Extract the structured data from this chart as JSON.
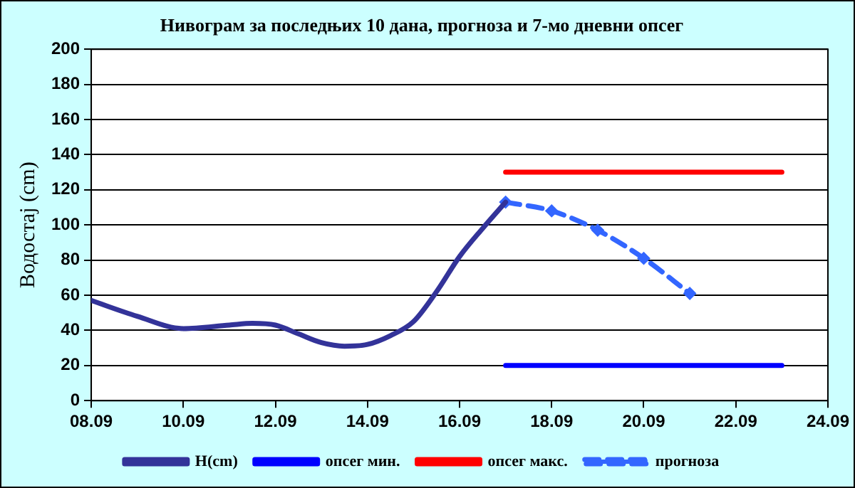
{
  "chart_data": {
    "type": "line",
    "title": "Нивограм за последњих 10 дана, прогноза и 7-мо дневни опсег",
    "ylabel": "Водостај (cm)",
    "xlim": [
      "--09-08",
      "--09-24"
    ],
    "xticks": [
      {
        "value": "--09-08",
        "label": "08.09"
      },
      {
        "value": "--09-10",
        "label": "10.09"
      },
      {
        "value": "--09-12",
        "label": "12.09"
      },
      {
        "value": "--09-14",
        "label": "14.09"
      },
      {
        "value": "--09-16",
        "label": "16.09"
      },
      {
        "value": "--09-18",
        "label": "18.09"
      },
      {
        "value": "--09-20",
        "label": "20.09"
      },
      {
        "value": "--09-22",
        "label": "22.09"
      },
      {
        "value": "--09-24",
        "label": "24.09"
      }
    ],
    "ylim": [
      0,
      200
    ],
    "yticks": [
      0,
      20,
      40,
      60,
      80,
      100,
      120,
      140,
      160,
      180,
      200
    ],
    "grid": "y",
    "legend": "bottom",
    "series": [
      {
        "name": "H(cm)",
        "color": "#333399",
        "marker": "none",
        "line_style": "solid",
        "x": [
          "--09-08T00:00",
          "--09-09T00:00",
          "--09-10T00:00",
          "--09-11T00:00",
          "--09-11T12:00",
          "--09-12T00:00",
          "--09-12T12:00",
          "--09-13T00:00",
          "--09-13T12:00",
          "--09-14T00:00",
          "--09-14T12:00",
          "--09-15T00:00",
          "--09-15T12:00",
          "--09-16T00:00",
          "--09-16T12:00",
          "--09-17T00:00"
        ],
        "values": [
          57,
          48,
          41,
          43,
          44,
          43,
          38,
          33,
          31,
          32,
          37,
          45,
          62,
          82,
          98,
          113
        ]
      },
      {
        "name": "опсег мин.",
        "color": "#0000ff",
        "marker": "none",
        "line_style": "solid",
        "x": [
          "--09-17",
          "--09-23"
        ],
        "values": [
          20,
          20
        ]
      },
      {
        "name": "опсег макс.",
        "color": "#ff0000",
        "marker": "none",
        "line_style": "solid",
        "x": [
          "--09-17",
          "--09-23"
        ],
        "values": [
          130,
          130
        ]
      },
      {
        "name": "прогноза",
        "color": "#3366ff",
        "marker": "diamond",
        "line_style": "dashed",
        "x": [
          "--09-17",
          "--09-18",
          "--09-19",
          "--09-20",
          "--09-21"
        ],
        "values": [
          113,
          108,
          97,
          81,
          61
        ]
      }
    ]
  }
}
